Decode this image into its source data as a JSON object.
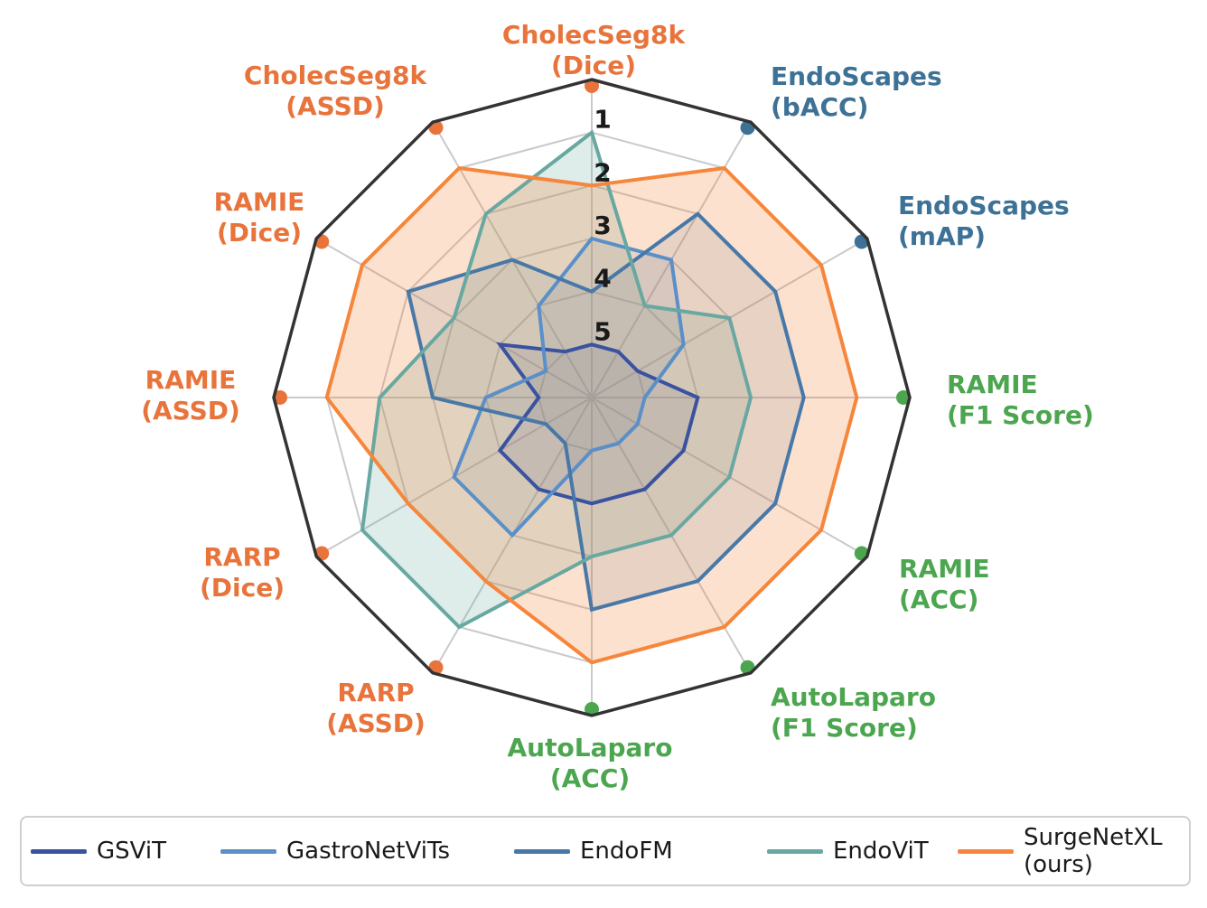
{
  "chart_data": {
    "type": "radar",
    "title": "",
    "radial_ticks": [
      "1",
      "2",
      "3",
      "4",
      "5"
    ],
    "radial_range": {
      "outer_value": 0,
      "center_value": 6,
      "note": "rank 1 (best) near outer edge, rank 5 near center"
    },
    "grid": "on",
    "grid_color": "#C9C9CE",
    "outline_color": "#333333",
    "tick_label_color": "#1a1a1a",
    "axes": [
      {
        "label_lines": [
          "CholecSeg8k",
          "(Dice)"
        ],
        "color": "#E8743C"
      },
      {
        "label_lines": [
          "EndoScapes",
          "(bACC)"
        ],
        "color": "#3D7296"
      },
      {
        "label_lines": [
          "EndoScapes",
          "(mAP)"
        ],
        "color": "#3D7296"
      },
      {
        "label_lines": [
          "RAMIE",
          "(F1 Score)"
        ],
        "color": "#4BA64F"
      },
      {
        "label_lines": [
          "RAMIE",
          "(ACC)"
        ],
        "color": "#4BA64F"
      },
      {
        "label_lines": [
          "AutoLaparo",
          "(F1 Score)"
        ],
        "color": "#4BA64F"
      },
      {
        "label_lines": [
          "AutoLaparo",
          "(ACC)"
        ],
        "color": "#4BA64F"
      },
      {
        "label_lines": [
          "RARP",
          "(ASSD)"
        ],
        "color": "#E8743C"
      },
      {
        "label_lines": [
          "RARP",
          "(Dice)"
        ],
        "color": "#E8743C"
      },
      {
        "label_lines": [
          "RAMIE",
          "(ASSD)"
        ],
        "color": "#E8743C"
      },
      {
        "label_lines": [
          "RAMIE",
          "(Dice)"
        ],
        "color": "#E8743C"
      },
      {
        "label_lines": [
          "CholecSeg8k",
          "(ASSD)"
        ],
        "color": "#E8743C"
      }
    ],
    "series": [
      {
        "name": "GSViT",
        "color": "#3A52A0",
        "fill_opacity": 0.15,
        "ranks": [
          5,
          5,
          5,
          4,
          4,
          4,
          4,
          4,
          4,
          5,
          4,
          5
        ]
      },
      {
        "name": "GastroNetViTs",
        "color": "#5A8FC8",
        "fill_opacity": 0.15,
        "ranks": [
          3,
          3,
          4,
          5,
          5,
          5,
          5,
          3,
          3,
          4,
          5,
          4
        ]
      },
      {
        "name": "EndoFM",
        "color": "#4878A8",
        "fill_opacity": 0.15,
        "ranks": [
          4,
          2,
          2,
          2,
          2,
          2,
          2,
          5,
          5,
          3,
          2,
          3
        ]
      },
      {
        "name": "EndoViT",
        "color": "#69A8A1",
        "fill_opacity": 0.22,
        "ranks": [
          1,
          4,
          3,
          3,
          3,
          3,
          3,
          1,
          1,
          2,
          3,
          2
        ]
      },
      {
        "name": "SurgeNetXL (ours)",
        "color": "#F5863B",
        "fill_opacity": 0.25,
        "ranks": [
          2,
          1,
          1,
          1,
          1,
          1,
          1,
          2,
          2,
          1,
          1,
          1
        ]
      }
    ],
    "legend_position": "bottom"
  },
  "legend": {
    "items": [
      {
        "label_lines": [
          "GSViT"
        ],
        "color": "#3A52A0"
      },
      {
        "label_lines": [
          "GastroNetViTs"
        ],
        "color": "#5A8FC8"
      },
      {
        "label_lines": [
          "EndoFM"
        ],
        "color": "#4878A8"
      },
      {
        "label_lines": [
          "EndoViT"
        ],
        "color": "#69A8A1"
      },
      {
        "label_lines": [
          "SurgeNetXL",
          "(ours)"
        ],
        "color": "#F5863B"
      }
    ]
  }
}
